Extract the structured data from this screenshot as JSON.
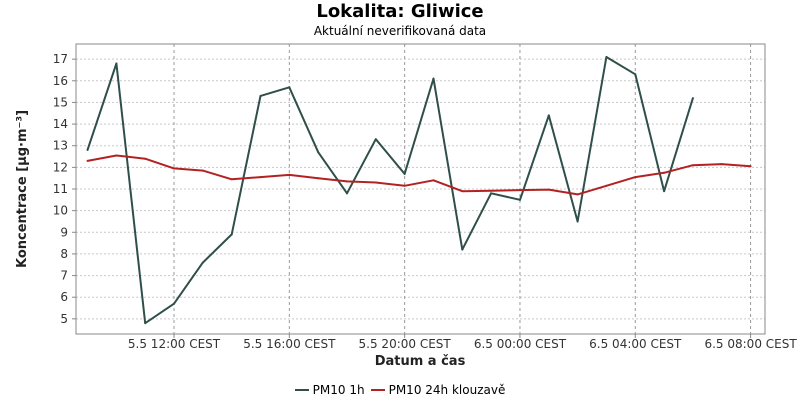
{
  "chart_data": {
    "type": "line",
    "title": "Lokalita: Gliwice",
    "subtitle": "Aktuální neverifikovaná data",
    "xlabel": "Datum a čas",
    "ylabel": "Koncentrace [µg·m⁻³]",
    "ylim": [
      4.3,
      17.7
    ],
    "yticks": [
      5,
      6,
      7,
      8,
      9,
      10,
      11,
      12,
      13,
      14,
      15,
      16,
      17
    ],
    "x_start": "5.5 09:00 CEST",
    "x_step_hours": 1,
    "xlim_hours": [
      -0.4,
      23.5
    ],
    "xticks": [
      {
        "hour": 3,
        "label": "5.5 12:00 CEST"
      },
      {
        "hour": 7,
        "label": "5.5 16:00 CEST"
      },
      {
        "hour": 11,
        "label": "5.5 20:00 CEST"
      },
      {
        "hour": 15,
        "label": "6.5 00:00 CEST"
      },
      {
        "hour": 19,
        "label": "6.5 04:00 CEST"
      },
      {
        "hour": 23,
        "label": "6.5 08:00 CEST"
      }
    ],
    "grid": true,
    "legend_position": "bottom-center",
    "series": [
      {
        "name": "PM10 1h",
        "color": "#2f4f4a",
        "values": [
          12.8,
          16.8,
          4.8,
          5.7,
          7.6,
          8.9,
          15.3,
          15.7,
          12.7,
          10.8,
          13.3,
          11.7,
          16.1,
          8.2,
          10.8,
          10.5,
          14.4,
          9.5,
          17.1,
          16.3,
          10.9,
          15.2
        ]
      },
      {
        "name": "PM10 24h klouzavě",
        "color": "#b22222",
        "values": [
          12.3,
          12.55,
          12.4,
          11.95,
          11.85,
          11.45,
          11.55,
          11.65,
          11.5,
          11.35,
          11.3,
          11.15,
          11.4,
          10.9,
          10.92,
          10.95,
          10.97,
          10.75,
          11.15,
          11.55,
          11.75,
          12.1,
          12.15,
          12.05
        ]
      }
    ]
  }
}
